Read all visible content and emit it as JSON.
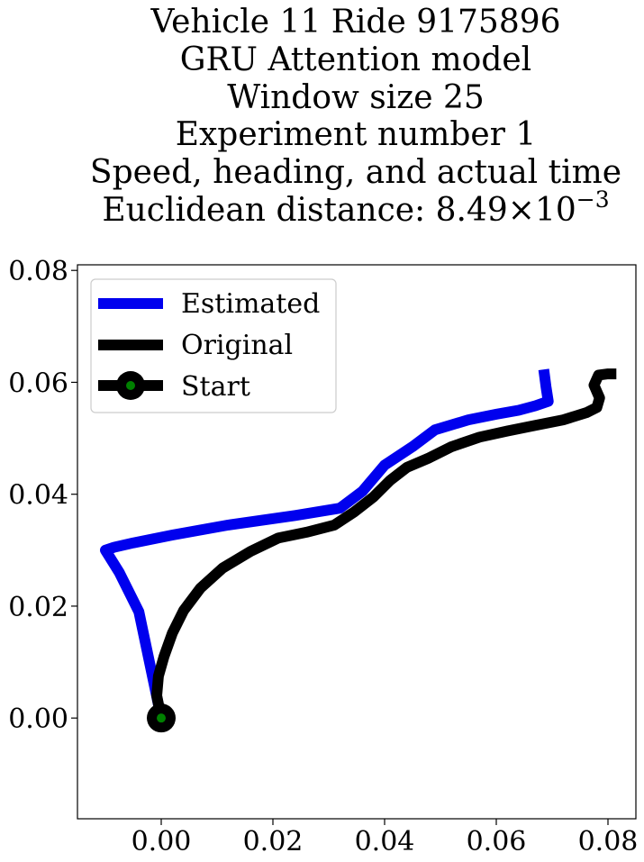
{
  "chart_data": {
    "type": "line",
    "title_lines": [
      "Vehicle 11 Ride 9175896",
      "GRU Attention model",
      "Window size 25",
      "Experiment number 1",
      "Speed, heading, and actual time"
    ],
    "title_distance_label": "Euclidean distance: ",
    "title_distance_mantissa": "8.49",
    "title_distance_times": "×",
    "title_distance_base": "10",
    "title_distance_exponent": "−3",
    "xlim": [
      -0.015,
      0.085
    ],
    "ylim": [
      -0.018,
      0.081
    ],
    "x_ticks": [
      0.0,
      0.02,
      0.04,
      0.06,
      0.08
    ],
    "x_tick_labels": [
      "0.00",
      "0.02",
      "0.04",
      "0.06",
      "0.08"
    ],
    "y_ticks": [
      0.0,
      0.02,
      0.04,
      0.06,
      0.08
    ],
    "y_tick_labels": [
      "0.00",
      "0.02",
      "0.04",
      "0.06",
      "0.08"
    ],
    "legend_position": "upper-left",
    "series": [
      {
        "name": "Estimated",
        "color": "#0000ee",
        "points": [
          [
            0.0,
            0.0
          ],
          [
            -0.004,
            0.019
          ],
          [
            -0.0075,
            0.026
          ],
          [
            -0.01,
            0.03
          ],
          [
            -0.0085,
            0.0305
          ],
          [
            -0.005,
            0.0313
          ],
          [
            0.002,
            0.0327
          ],
          [
            0.012,
            0.0345
          ],
          [
            0.024,
            0.0362
          ],
          [
            0.032,
            0.0375
          ],
          [
            0.036,
            0.0405
          ],
          [
            0.04,
            0.0452
          ],
          [
            0.045,
            0.0485
          ],
          [
            0.049,
            0.0515
          ],
          [
            0.055,
            0.0533
          ],
          [
            0.06,
            0.0543
          ],
          [
            0.064,
            0.055
          ],
          [
            0.067,
            0.0558
          ],
          [
            0.0693,
            0.0566
          ],
          [
            0.0689,
            0.0592
          ],
          [
            0.0685,
            0.0623
          ]
        ]
      },
      {
        "name": "Original",
        "color": "#000000",
        "points": [
          [
            0.0,
            0.0
          ],
          [
            -0.0008,
            0.004
          ],
          [
            -0.0005,
            0.0075
          ],
          [
            0.0005,
            0.011
          ],
          [
            0.002,
            0.0152
          ],
          [
            0.004,
            0.0192
          ],
          [
            0.007,
            0.0232
          ],
          [
            0.011,
            0.0268
          ],
          [
            0.016,
            0.0298
          ],
          [
            0.021,
            0.0322
          ],
          [
            0.026,
            0.0332
          ],
          [
            0.031,
            0.0345
          ],
          [
            0.0345,
            0.0368
          ],
          [
            0.038,
            0.0395
          ],
          [
            0.041,
            0.0425
          ],
          [
            0.044,
            0.0448
          ],
          [
            0.048,
            0.0465
          ],
          [
            0.052,
            0.0485
          ],
          [
            0.057,
            0.0502
          ],
          [
            0.062,
            0.0513
          ],
          [
            0.067,
            0.0523
          ],
          [
            0.072,
            0.0533
          ],
          [
            0.0762,
            0.0546
          ],
          [
            0.078,
            0.0555
          ],
          [
            0.0785,
            0.0572
          ],
          [
            0.0775,
            0.0595
          ],
          [
            0.0783,
            0.0613
          ],
          [
            0.08,
            0.0615
          ],
          [
            0.0815,
            0.0615
          ]
        ]
      }
    ],
    "start_point": {
      "name": "Start",
      "x": 0.0,
      "y": 0.0,
      "marker_color": "#000000",
      "inner_color": "#008000"
    }
  }
}
